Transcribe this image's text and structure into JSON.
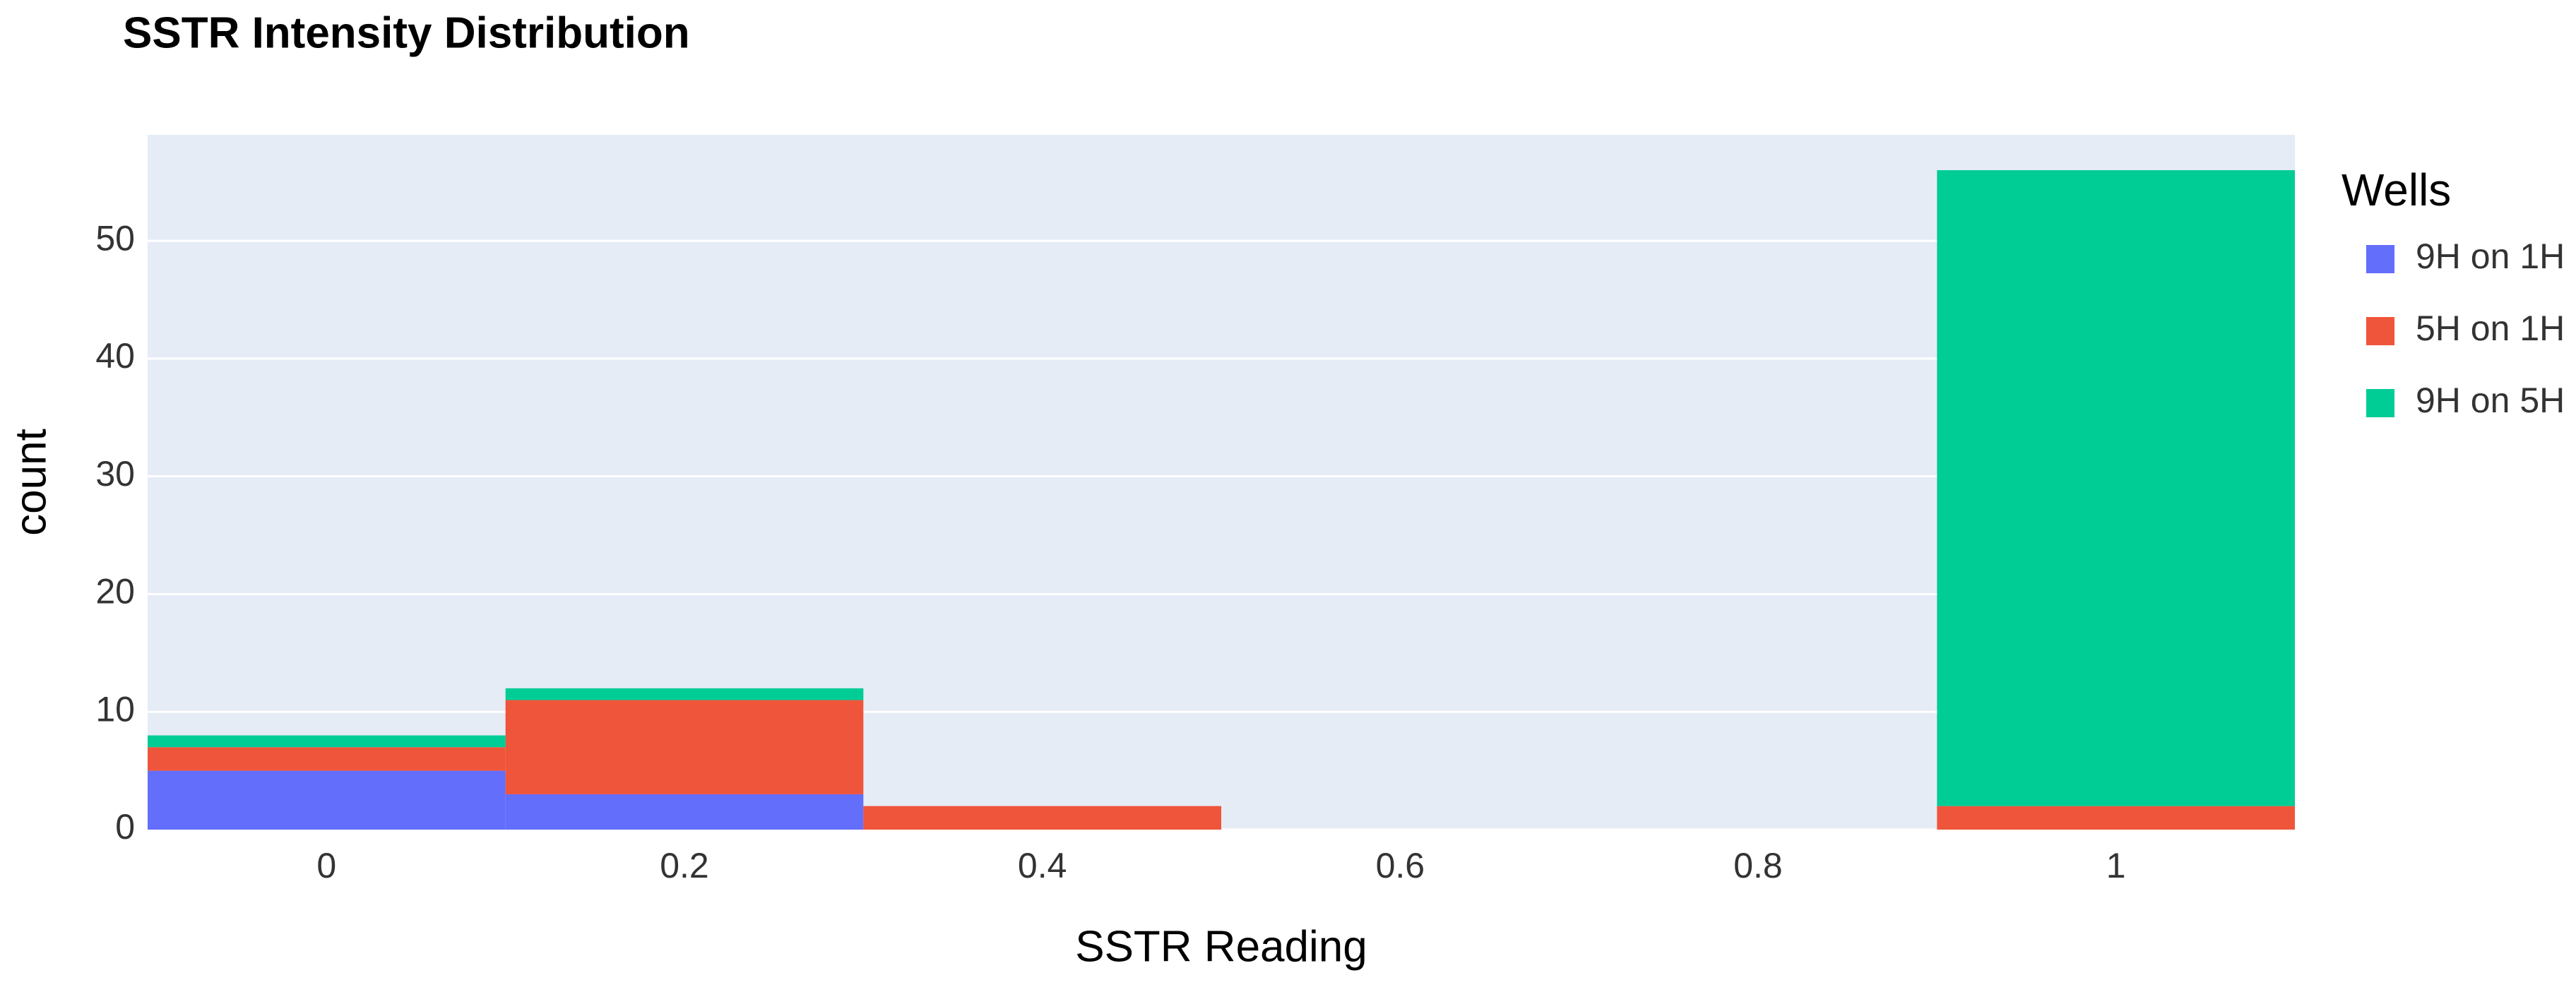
{
  "chart_data": {
    "type": "histogram",
    "title": "SSTR Intensity Distribution",
    "x_label": "SSTR Reading",
    "y_label": "count",
    "legend_title": "Wells",
    "bins": [
      -0.1,
      0.1,
      0.3,
      0.5,
      0.7,
      0.9,
      1.1
    ],
    "series": [
      {
        "name": "9H on 1H",
        "color": "#636efa",
        "values": [
          5,
          3,
          0,
          0,
          0,
          0
        ]
      },
      {
        "name": "5H on 1H",
        "color": "#ef553b",
        "values": [
          2,
          8,
          2,
          0,
          0,
          2
        ]
      },
      {
        "name": "9H on 5H",
        "color": "#00cc96",
        "values": [
          1,
          1,
          0,
          0,
          0,
          54
        ]
      }
    ],
    "stacked": true,
    "xlim": [
      -0.1,
      1.1
    ],
    "xticks": [
      0,
      0.2,
      0.4,
      0.6,
      0.8,
      1
    ],
    "ylim": [
      0,
      59
    ],
    "yticks": [
      0,
      10,
      20,
      30,
      40,
      50
    ],
    "grid": true,
    "legend_position": "right"
  }
}
